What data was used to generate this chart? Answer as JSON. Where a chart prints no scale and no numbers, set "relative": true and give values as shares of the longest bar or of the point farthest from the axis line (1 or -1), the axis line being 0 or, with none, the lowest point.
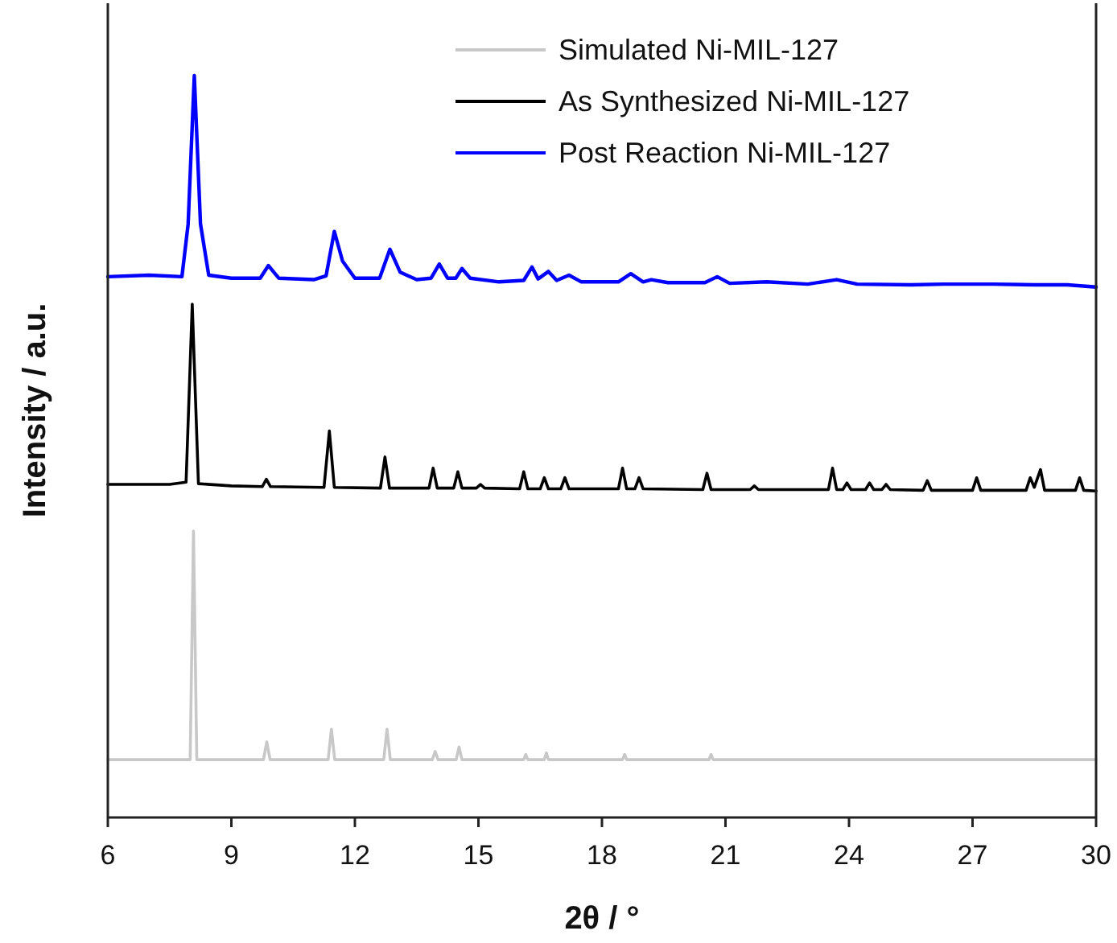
{
  "chart_data": {
    "type": "line",
    "relative": true,
    "xlabel": "2θ / °",
    "ylabel": "Intensity / a.u.",
    "xlim": [
      6,
      30
    ],
    "xticks": [
      6,
      9,
      12,
      15,
      18,
      21,
      24,
      27,
      30
    ],
    "tick_labels": "x",
    "legend": "top right",
    "series": [
      {
        "name": "Simulated Ni-MIL-127",
        "color": "#c8c8c8",
        "x": [
          6,
          8.0,
          8.08,
          8.16,
          9.78,
          9.86,
          9.94,
          11.35,
          11.43,
          11.51,
          12.7,
          12.78,
          12.86,
          13.88,
          13.95,
          14.02,
          14.46,
          14.53,
          14.6,
          16.1,
          16.15,
          16.2,
          16.6,
          16.65,
          16.7,
          18.5,
          18.55,
          18.6,
          20.6,
          20.65,
          20.7,
          30
        ],
        "values": [
          0.078,
          0.078,
          0.386,
          0.078,
          0.078,
          0.102,
          0.078,
          0.078,
          0.119,
          0.078,
          0.078,
          0.119,
          0.078,
          0.078,
          0.089,
          0.078,
          0.078,
          0.095,
          0.078,
          0.078,
          0.085,
          0.078,
          0.078,
          0.087,
          0.078,
          0.078,
          0.085,
          0.078,
          0.078,
          0.085,
          0.078,
          0.078
        ]
      },
      {
        "name": "As Synthesized Ni-MIL-127",
        "color": "#000000",
        "x": [
          6,
          7.5,
          7.9,
          8.05,
          8.2,
          9.0,
          9.75,
          9.85,
          9.95,
          11.25,
          11.38,
          11.5,
          12.62,
          12.73,
          12.84,
          13.8,
          13.9,
          14.0,
          14.4,
          14.5,
          14.6,
          14.95,
          15.05,
          15.15,
          16.0,
          16.1,
          16.2,
          16.5,
          16.6,
          16.7,
          17.0,
          17.1,
          17.2,
          18.4,
          18.5,
          18.6,
          18.8,
          18.9,
          19.0,
          20.45,
          20.55,
          20.65,
          21.6,
          21.7,
          21.8,
          23.5,
          23.6,
          23.7,
          23.85,
          23.95,
          24.05,
          24.4,
          24.5,
          24.6,
          24.8,
          24.9,
          25.0,
          25.8,
          25.9,
          26.0,
          27.0,
          27.1,
          27.2,
          28.3,
          28.4,
          28.5,
          28.65,
          28.75,
          29.5,
          29.6,
          29.7,
          30
        ],
        "values": [
          0.449,
          0.449,
          0.452,
          0.692,
          0.45,
          0.447,
          0.446,
          0.456,
          0.446,
          0.445,
          0.521,
          0.445,
          0.444,
          0.486,
          0.444,
          0.444,
          0.471,
          0.444,
          0.444,
          0.466,
          0.444,
          0.444,
          0.449,
          0.444,
          0.443,
          0.466,
          0.443,
          0.443,
          0.458,
          0.443,
          0.443,
          0.458,
          0.443,
          0.443,
          0.471,
          0.443,
          0.443,
          0.458,
          0.443,
          0.442,
          0.464,
          0.442,
          0.442,
          0.447,
          0.442,
          0.442,
          0.471,
          0.442,
          0.442,
          0.451,
          0.442,
          0.442,
          0.451,
          0.442,
          0.442,
          0.449,
          0.442,
          0.441,
          0.454,
          0.441,
          0.441,
          0.458,
          0.441,
          0.441,
          0.458,
          0.445,
          0.469,
          0.441,
          0.441,
          0.458,
          0.441,
          0.44
        ]
      },
      {
        "name": "Post Reaction Ni-MIL-127",
        "color": "#0000ff",
        "x": [
          6,
          7.0,
          7.8,
          7.95,
          8.1,
          8.25,
          8.45,
          9.0,
          9.7,
          9.9,
          10.15,
          11.0,
          11.3,
          11.5,
          11.7,
          12.0,
          12.6,
          12.85,
          13.1,
          13.5,
          13.85,
          14.05,
          14.25,
          14.45,
          14.6,
          14.8,
          15.5,
          16.1,
          16.3,
          16.45,
          16.7,
          16.9,
          17.2,
          17.5,
          18.4,
          18.7,
          19.0,
          19.2,
          19.6,
          20.5,
          20.8,
          21.1,
          22.0,
          23.0,
          23.7,
          24.2,
          25.5,
          26.3,
          27.5,
          28.5,
          29.3,
          30
        ],
        "values": [
          0.729,
          0.731,
          0.729,
          0.8,
          1.0,
          0.8,
          0.731,
          0.727,
          0.727,
          0.744,
          0.727,
          0.725,
          0.73,
          0.79,
          0.75,
          0.727,
          0.727,
          0.766,
          0.735,
          0.725,
          0.727,
          0.746,
          0.727,
          0.727,
          0.74,
          0.727,
          0.722,
          0.724,
          0.742,
          0.726,
          0.736,
          0.724,
          0.731,
          0.722,
          0.722,
          0.733,
          0.722,
          0.725,
          0.721,
          0.721,
          0.729,
          0.72,
          0.722,
          0.719,
          0.725,
          0.719,
          0.718,
          0.719,
          0.719,
          0.718,
          0.718,
          0.715
        ]
      }
    ]
  }
}
